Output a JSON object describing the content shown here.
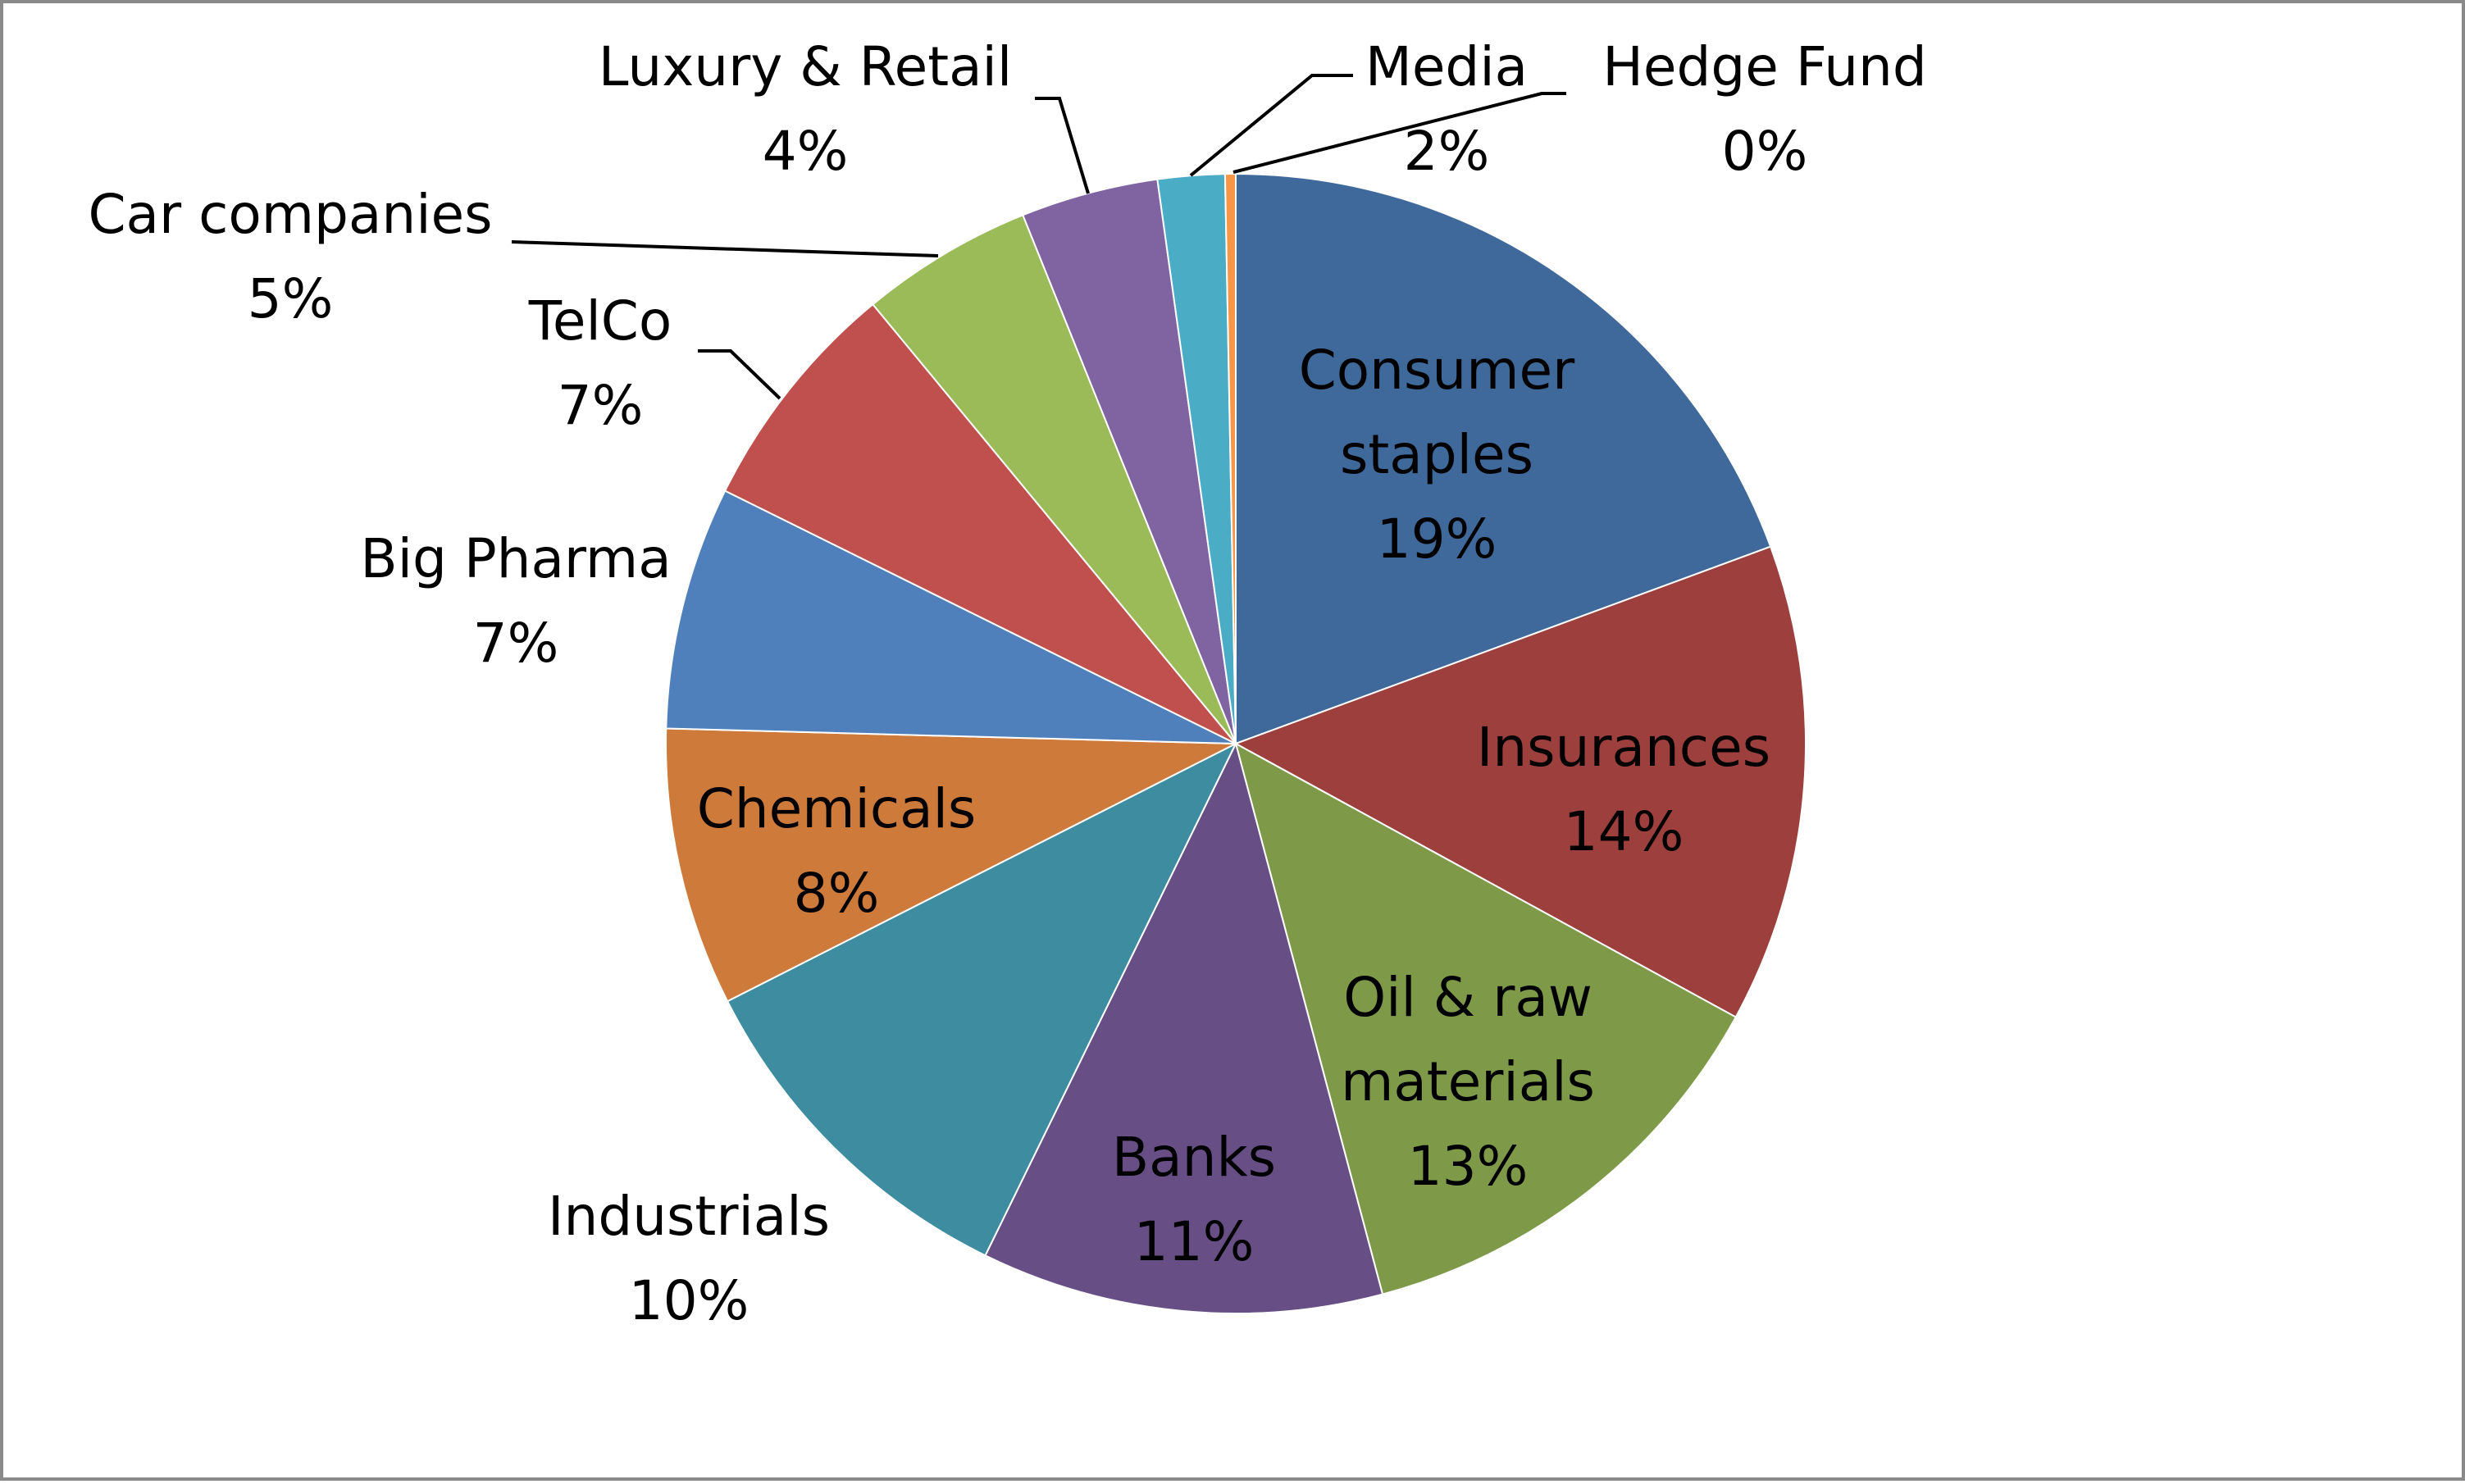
{
  "chart_data": {
    "type": "pie",
    "categories": [
      "Consumer staples",
      "Insurances",
      "Oil & raw materials",
      "Banks",
      "Industrials",
      "Chemicals",
      "Big Pharma",
      "TelCo",
      "Car companies",
      "Luxury & Retail",
      "Media",
      "Hedge Fund"
    ],
    "values": [
      19.4,
      13.6,
      12.9,
      11.4,
      10.3,
      7.9,
      6.9,
      6.7,
      4.9,
      3.9,
      1.9,
      0.3
    ],
    "labels": [
      {
        "lines": [
          "Consumer",
          "staples"
        ],
        "pct": "19%"
      },
      {
        "lines": [
          "Insurances"
        ],
        "pct": "14%"
      },
      {
        "lines": [
          "Oil & raw",
          "materials"
        ],
        "pct": "13%"
      },
      {
        "lines": [
          "Banks"
        ],
        "pct": "11%"
      },
      {
        "lines": [
          "Industrials"
        ],
        "pct": "10%"
      },
      {
        "lines": [
          "Chemicals"
        ],
        "pct": "8%"
      },
      {
        "lines": [
          "Big Pharma"
        ],
        "pct": "7%"
      },
      {
        "lines": [
          "TelCo"
        ],
        "pct": "7%"
      },
      {
        "lines": [
          "Car companies"
        ],
        "pct": "5%"
      },
      {
        "lines": [
          "Luxury & Retail"
        ],
        "pct": "4%"
      },
      {
        "lines": [
          "Media"
        ],
        "pct": "2%"
      },
      {
        "lines": [
          "Hedge Fund"
        ],
        "pct": "0%"
      }
    ],
    "colors": [
      "#3F699B",
      "#9C3F3D",
      "#7E9A48",
      "#674F85",
      "#3D8CA0",
      "#CD7A3B",
      "#4F80BC",
      "#C0504D",
      "#9BBB59",
      "#8064A2",
      "#4BACC6",
      "#F79646"
    ],
    "start_angle": "12 o'clock",
    "direction": "clockwise",
    "legend": "none"
  }
}
